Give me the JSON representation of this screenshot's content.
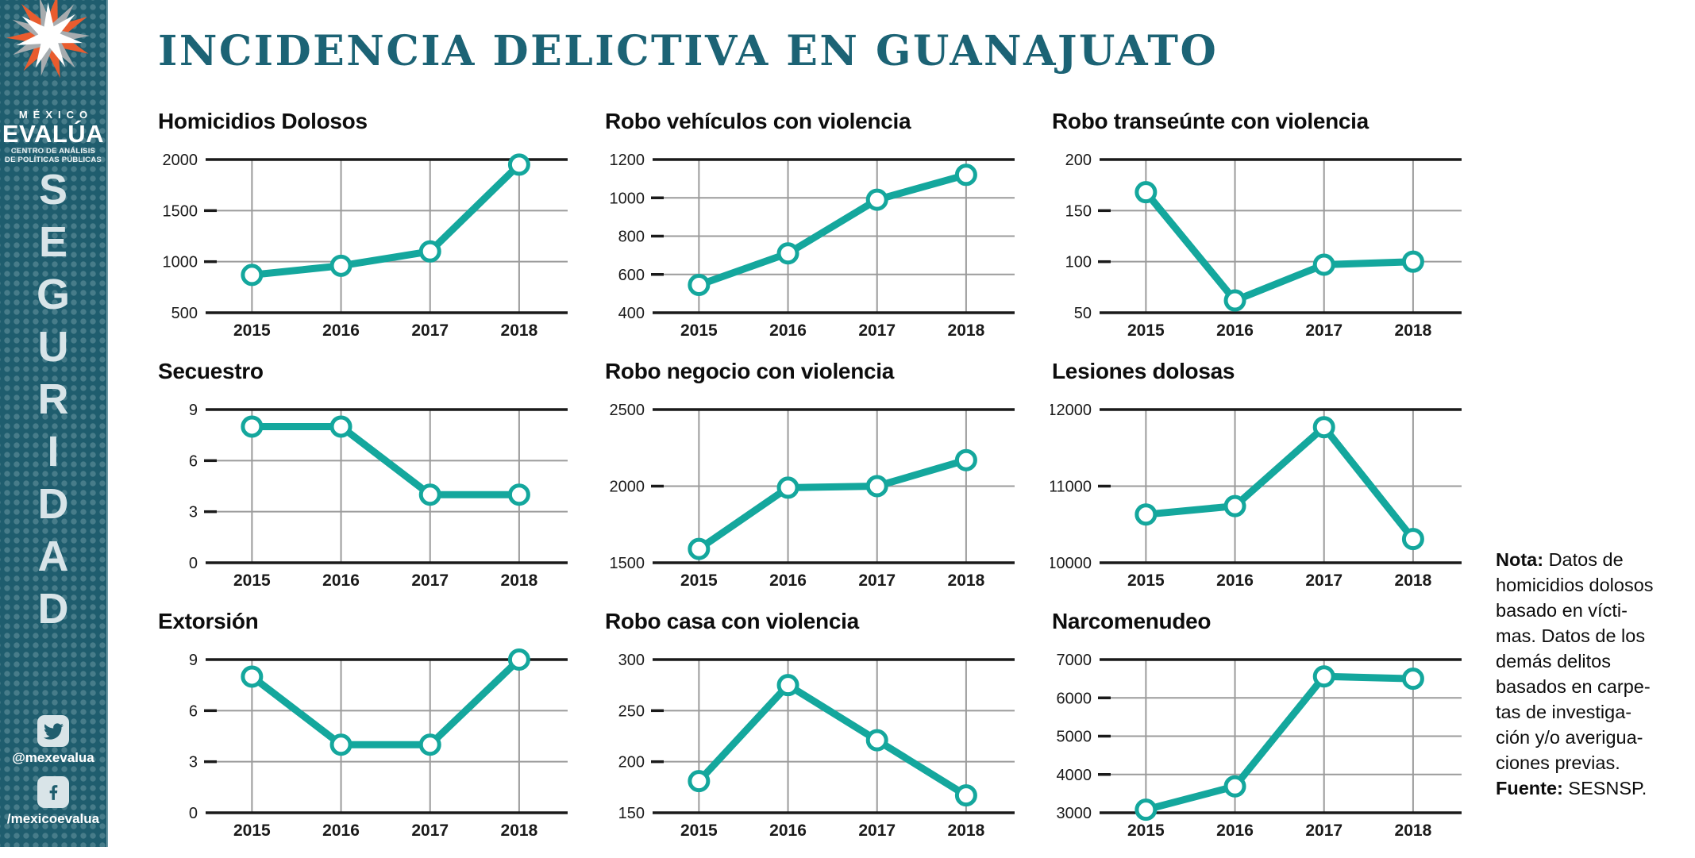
{
  "header": {
    "title": "INCIDENCIA DELICTIVA EN GUANAJUATO"
  },
  "sidebar": {
    "brand": {
      "line1": "MÉXICO",
      "line2": "EVALÚA",
      "line3": "CENTRO DE ANÁLISIS",
      "line4": "DE POLÍTICAS PÚBLICAS"
    },
    "vertical_word": "SEGURIDAD",
    "social": [
      {
        "icon": "twitter-icon",
        "handle": "@mexevalua"
      },
      {
        "icon": "facebook-icon",
        "handle": "/mexicoevalua"
      }
    ]
  },
  "note": {
    "nota_label": "Nota:",
    "nota_text": "Datos de\nhomicidios dolosos\nbasado en vícti-\nmas. Datos de los\ndemás delitos\nbasados en carpe-\ntas de investiga-\nción y/o averigua-\nciones previas.",
    "fuente_label": "Fuente:",
    "fuente_text": "SESNSP."
  },
  "colors": {
    "accent_teal": "#14A79D",
    "title_teal": "#1C6375",
    "sidebar_bg": "#1F5D6E",
    "grid_gray": "#9B9B9B",
    "axis_black": "#1A1A1A",
    "logo_orange": "#E95C2E",
    "logo_gray": "#A7ACAF"
  },
  "chart_data": [
    {
      "type": "line",
      "title": "Homicidios Dolosos",
      "x": [
        "2015",
        "2016",
        "2017",
        "2018"
      ],
      "values": [
        870,
        960,
        1100,
        1950
      ],
      "ylim": [
        500,
        2000
      ],
      "yticks": [
        500,
        1000,
        1500,
        2000
      ],
      "grid": true,
      "legend": "none"
    },
    {
      "type": "line",
      "title": "Robo vehículos con violencia",
      "x": [
        "2015",
        "2016",
        "2017",
        "2018"
      ],
      "values": [
        545,
        710,
        990,
        1120
      ],
      "ylim": [
        400,
        1200
      ],
      "yticks": [
        400,
        600,
        800,
        1000,
        1200
      ],
      "grid": true,
      "legend": "none"
    },
    {
      "type": "line",
      "title": "Robo transeúnte con violencia",
      "x": [
        "2015",
        "2016",
        "2017",
        "2018"
      ],
      "values": [
        168,
        62,
        97,
        100
      ],
      "ylim": [
        50,
        200
      ],
      "yticks": [
        50,
        100,
        150,
        200
      ],
      "grid": true,
      "legend": "none"
    },
    {
      "type": "line",
      "title": "Secuestro",
      "x": [
        "2015",
        "2016",
        "2017",
        "2018"
      ],
      "values": [
        8,
        8,
        4,
        4
      ],
      "ylim": [
        0,
        9
      ],
      "yticks": [
        0,
        3,
        6,
        9
      ],
      "grid": true,
      "legend": "none"
    },
    {
      "type": "line",
      "title": "Robo negocio con violencia",
      "x": [
        "2015",
        "2016",
        "2017",
        "2018"
      ],
      "values": [
        1590,
        1990,
        2000,
        2170
      ],
      "ylim": [
        1500,
        2500
      ],
      "yticks": [
        1500,
        2000,
        2500
      ],
      "grid": true,
      "legend": "none"
    },
    {
      "type": "line",
      "title": "Lesiones dolosas",
      "x": [
        "2015",
        "2016",
        "2017",
        "2018"
      ],
      "values": [
        10630,
        10740,
        11770,
        10310
      ],
      "ylim": [
        10000,
        12000
      ],
      "yticks": [
        10000,
        11000,
        12000
      ],
      "grid": true,
      "legend": "none"
    },
    {
      "type": "line",
      "title": "Extorsión",
      "x": [
        "2015",
        "2016",
        "2017",
        "2018"
      ],
      "values": [
        8,
        4,
        4,
        9
      ],
      "ylim": [
        0,
        9
      ],
      "yticks": [
        0,
        3,
        6,
        9
      ],
      "grid": true,
      "legend": "none"
    },
    {
      "type": "line",
      "title": "Robo casa con violencia",
      "x": [
        "2015",
        "2016",
        "2017",
        "2018"
      ],
      "values": [
        181,
        275,
        221,
        167
      ],
      "ylim": [
        150,
        300
      ],
      "yticks": [
        150,
        200,
        250,
        300
      ],
      "grid": true,
      "legend": "none"
    },
    {
      "type": "line",
      "title": "Narcomenudeo",
      "x": [
        "2015",
        "2016",
        "2017",
        "2018"
      ],
      "values": [
        3080,
        3690,
        6560,
        6500
      ],
      "ylim": [
        3000,
        7000
      ],
      "yticks": [
        3000,
        4000,
        5000,
        6000,
        7000
      ],
      "grid": true,
      "legend": "none"
    }
  ]
}
